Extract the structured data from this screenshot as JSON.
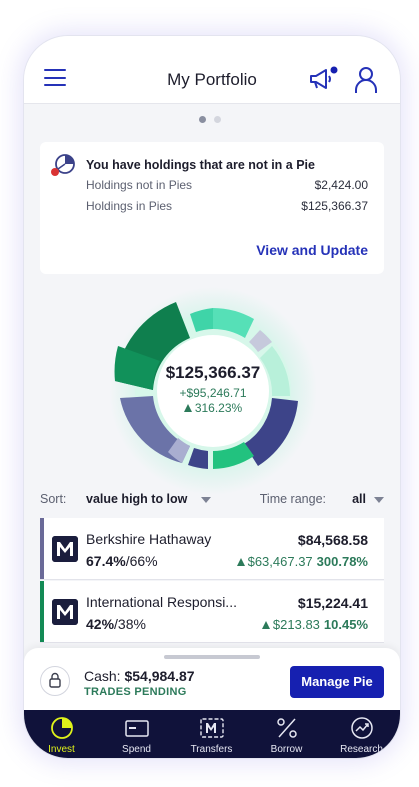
{
  "header": {
    "title": "My Portfolio"
  },
  "carousel": {
    "active_index": 0,
    "count": 2
  },
  "holdings_card": {
    "title": "You have holdings that are not in a Pie",
    "rows": [
      {
        "label": "Holdings not in Pies",
        "value": "$2,424.00"
      },
      {
        "label": "Holdings in Pies",
        "value": "$125,366.37"
      }
    ],
    "action_label": "View and Update"
  },
  "summary": {
    "total": "$125,366.37",
    "gain": "+$95,246.71",
    "gain_pct": "316.23%"
  },
  "sort": {
    "label": "Sort:",
    "value": "value high to low",
    "time_label": "Time range:",
    "time_value": "all"
  },
  "holdings": [
    {
      "name": "Berkshire Hathaway",
      "alloc_actual": "67.4%",
      "alloc_target": "/66%",
      "value": "$84,568.58",
      "change": "$63,467.37",
      "change_pct": "300.78%",
      "accent": "#6a6a98"
    },
    {
      "name": "International Responsi...",
      "alloc_actual": "42%",
      "alloc_target": "/38%",
      "value": "$15,224.41",
      "change": "$213.83",
      "change_pct": "10.45%",
      "accent": "#138a55"
    }
  ],
  "cash": {
    "label": "Cash:",
    "value": "$54,984.87",
    "status": "TRADES PENDING",
    "button_label": "Manage Pie"
  },
  "tabs": [
    {
      "label": "Invest",
      "icon": "pie-chart-icon",
      "active": true
    },
    {
      "label": "Spend",
      "icon": "card-icon",
      "active": false
    },
    {
      "label": "Transfers",
      "icon": "transfers-icon",
      "active": false
    },
    {
      "label": "Borrow",
      "icon": "percent-icon",
      "active": false
    },
    {
      "label": "Research",
      "icon": "research-icon",
      "active": false
    }
  ],
  "colors": {
    "brand_blue": "#2532b8",
    "button_blue": "#1620b0",
    "positive_green": "#2c7a5a",
    "tabbar_bg": "#10123a",
    "tab_active": "#dff21a",
    "donut_green": "#16a36b",
    "donut_mint": "#5fe0b8",
    "donut_navy": "#3b4289",
    "donut_slate": "#6b73a8"
  }
}
